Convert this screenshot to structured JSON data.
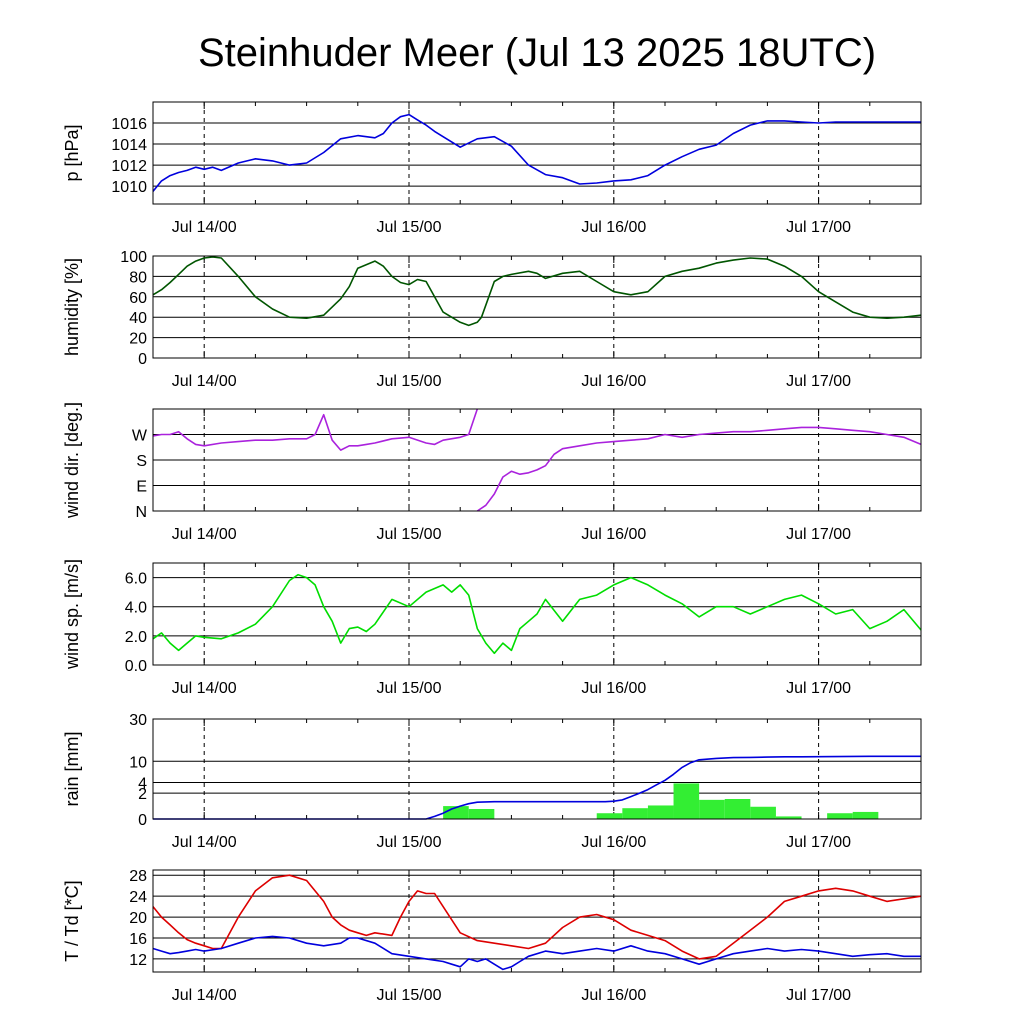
{
  "title": "Steinhuder Meer (Jul 13 2025 18UTC)",
  "x_tick_labels": [
    "Jul 14/00",
    "Jul 15/00",
    "Jul 16/00",
    "Jul 17/00"
  ],
  "chart_data": [
    {
      "type": "line",
      "ylabel": "p [hPa]",
      "ylim": [
        1008.3,
        1018.0
      ],
      "ticks": [
        1010,
        1012,
        1014,
        1016
      ],
      "tick_labels": [
        "1010",
        "1012",
        "1014",
        "1016"
      ],
      "xlim_hours": [
        0,
        90
      ],
      "series": [
        {
          "color": "#0000dd",
          "x": [
            0,
            1,
            2,
            3,
            4,
            5,
            6,
            7,
            8,
            10,
            12,
            14,
            16,
            18,
            20,
            22,
            24,
            26,
            27,
            28,
            29,
            30,
            31,
            32,
            33,
            34,
            36,
            38,
            40,
            42,
            44,
            46,
            48,
            50,
            52,
            54,
            56,
            58,
            60,
            62,
            64,
            66,
            68,
            70,
            72,
            74,
            76,
            78,
            80,
            82,
            84,
            86,
            88,
            90
          ],
          "y": [
            1009.5,
            1010.5,
            1011.0,
            1011.3,
            1011.5,
            1011.8,
            1011.6,
            1011.8,
            1011.5,
            1012.2,
            1012.6,
            1012.4,
            1012.0,
            1012.2,
            1013.2,
            1014.5,
            1014.8,
            1014.6,
            1015.0,
            1016.0,
            1016.6,
            1016.8,
            1016.3,
            1015.8,
            1015.2,
            1014.7,
            1013.7,
            1014.5,
            1014.7,
            1013.8,
            1012.0,
            1011.1,
            1010.8,
            1010.2,
            1010.3,
            1010.5,
            1010.6,
            1011.0,
            1012.0,
            1012.8,
            1013.5,
            1013.9,
            1015.0,
            1015.8,
            1016.2,
            1016.2,
            1016.1,
            1016.0,
            1016.1,
            1016.1,
            1016.1,
            1016.1,
            1016.1,
            1016.1
          ]
        }
      ]
    },
    {
      "type": "line",
      "ylabel": "humidity [%]",
      "ylim": [
        0,
        100
      ],
      "ticks": [
        0,
        20,
        40,
        60,
        80,
        100
      ],
      "tick_labels": [
        "0",
        "20",
        "40",
        "60",
        "80",
        "100"
      ],
      "xlim_hours": [
        0,
        90
      ],
      "series": [
        {
          "color": "#005500",
          "x": [
            0,
            1,
            2,
            3,
            4,
            5,
            6,
            7,
            8,
            10,
            12,
            14,
            16,
            18,
            20,
            22,
            23,
            24,
            26,
            27,
            28,
            29,
            30,
            31,
            32,
            34,
            36,
            37,
            38,
            38.5,
            40,
            41,
            42,
            44,
            45,
            46,
            48,
            50,
            52,
            54,
            56,
            58,
            60,
            62,
            64,
            66,
            68,
            70,
            72,
            74,
            76,
            78,
            80,
            82,
            84,
            86,
            88,
            90
          ],
          "y": [
            62,
            67,
            74,
            82,
            90,
            95,
            98,
            99,
            98,
            80,
            60,
            48,
            40,
            39,
            42,
            58,
            70,
            88,
            95,
            90,
            80,
            74,
            72,
            77,
            75,
            45,
            35,
            32,
            35,
            40,
            75,
            80,
            82,
            85,
            83,
            78,
            83,
            85,
            75,
            65,
            62,
            65,
            80,
            85,
            88,
            93,
            96,
            98,
            97,
            90,
            80,
            65,
            55,
            45,
            40,
            39,
            40,
            42
          ]
        }
      ]
    },
    {
      "type": "line",
      "ylabel": "wind dir. [deg.]",
      "ylim": [
        0,
        360
      ],
      "ticks": [
        0,
        90,
        180,
        270
      ],
      "tick_labels": [
        "N",
        "E",
        "S",
        "W"
      ],
      "xlim_hours": [
        0,
        90
      ],
      "series": [
        {
          "color": "#aa22dd",
          "x": [
            0,
            1,
            2,
            3,
            4,
            5,
            6,
            8,
            10,
            12,
            14,
            16,
            18,
            19,
            20,
            21,
            22,
            23,
            24,
            25,
            26,
            28,
            30,
            32,
            33,
            34,
            36,
            37,
            38
          ],
          "y": [
            265,
            270,
            270,
            280,
            255,
            235,
            230,
            240,
            245,
            250,
            250,
            255,
            255,
            270,
            340,
            250,
            215,
            230,
            230,
            235,
            240,
            255,
            260,
            240,
            235,
            250,
            260,
            270,
            360
          ]
        },
        {
          "color": "#aa22dd",
          "x": [
            38,
            39,
            40,
            41,
            42,
            43,
            44,
            45,
            46,
            47,
            48,
            50,
            52,
            54,
            56,
            58,
            60,
            62,
            64,
            66,
            68,
            70,
            72,
            74,
            76,
            78,
            80,
            82,
            84,
            86,
            88,
            90
          ],
          "y": [
            0,
            20,
            60,
            120,
            140,
            130,
            135,
            145,
            160,
            200,
            220,
            230,
            240,
            245,
            250,
            255,
            270,
            260,
            270,
            275,
            280,
            280,
            285,
            290,
            295,
            295,
            290,
            285,
            280,
            270,
            260,
            235
          ]
        }
      ]
    },
    {
      "type": "line",
      "ylabel": "wind sp. [m/s]",
      "ylim": [
        0,
        7.0
      ],
      "ticks": [
        0.0,
        2.0,
        4.0,
        6.0
      ],
      "tick_labels": [
        "0.0",
        "2.0",
        "4.0",
        "6.0"
      ],
      "xlim_hours": [
        0,
        90
      ],
      "series": [
        {
          "color": "#00dd00",
          "x": [
            0,
            1,
            2,
            3,
            4,
            5,
            6,
            8,
            10,
            12,
            14,
            16,
            17,
            18,
            19,
            20,
            21,
            22,
            23,
            24,
            25,
            26,
            28,
            30,
            32,
            34,
            35,
            36,
            37,
            38,
            39,
            40,
            41,
            42,
            43,
            44,
            45,
            46,
            48,
            50,
            52,
            54,
            56,
            58,
            60,
            62,
            64,
            66,
            68,
            70,
            72,
            74,
            76,
            78,
            80,
            82,
            84,
            86,
            88,
            90
          ],
          "y": [
            1.8,
            2.2,
            1.5,
            1.0,
            1.5,
            2.0,
            1.9,
            1.8,
            2.2,
            2.8,
            4.0,
            5.8,
            6.2,
            6.0,
            5.5,
            4.0,
            3.0,
            1.5,
            2.5,
            2.6,
            2.3,
            2.8,
            4.5,
            4.0,
            5.0,
            5.5,
            5.0,
            5.5,
            4.8,
            2.5,
            1.5,
            0.8,
            1.5,
            1.0,
            2.5,
            3.0,
            3.5,
            4.5,
            3.0,
            4.5,
            4.8,
            5.5,
            6.0,
            5.5,
            4.8,
            4.2,
            3.3,
            4.0,
            4.0,
            3.5,
            4.0,
            4.5,
            4.8,
            4.2,
            3.5,
            3.8,
            2.5,
            3.0,
            3.8,
            2.4
          ]
        }
      ]
    },
    {
      "type": "bar",
      "ylabel": "rain [mm]",
      "scale": "sqrt",
      "ylim": [
        0,
        30
      ],
      "ticks": [
        0,
        2,
        4,
        10,
        30
      ],
      "tick_labels": [
        "0",
        "2",
        "4",
        "10",
        "30"
      ],
      "xlim_hours": [
        0,
        90
      ],
      "bar_color": "#33ee33",
      "bar_width_hours": 3,
      "bars": {
        "x": [
          35.5,
          38.5,
          53.5,
          56.5,
          59.5,
          62.5,
          65.5,
          68.5,
          71.5,
          74.5,
          80.5,
          83.5
        ],
        "values": [
          0.5,
          0.3,
          0.1,
          0.35,
          0.55,
          3.8,
          1.1,
          1.2,
          0.45,
          0.02,
          0.1,
          0.15
        ]
      },
      "series": [
        {
          "color": "#0000dd",
          "name": "",
          "x": [
            0,
            30,
            32,
            33,
            34,
            35,
            36,
            37,
            38,
            40,
            42,
            44,
            46,
            48,
            50,
            52,
            53,
            54,
            55,
            56,
            57,
            58,
            59,
            60,
            61,
            62,
            63,
            64,
            66,
            68,
            70,
            72,
            74,
            76,
            80,
            84,
            88,
            90
          ],
          "y": [
            0,
            0,
            0,
            0.02,
            0.1,
            0.3,
            0.5,
            0.7,
            0.85,
            0.9,
            0.9,
            0.9,
            0.9,
            0.9,
            0.9,
            0.9,
            0.9,
            0.95,
            1.1,
            1.5,
            2.0,
            2.6,
            3.5,
            4.5,
            6.0,
            8.0,
            9.5,
            10.5,
            11.0,
            11.3,
            11.4,
            11.5,
            11.6,
            11.6,
            11.7,
            11.8,
            11.8,
            11.8
          ]
        }
      ]
    },
    {
      "type": "line",
      "ylabel": "T / Td [*C]",
      "ylim": [
        9.5,
        29
      ],
      "ticks": [
        12,
        16,
        20,
        24,
        28
      ],
      "tick_labels": [
        "12",
        "16",
        "20",
        "24",
        "28"
      ],
      "xlim_hours": [
        0,
        90
      ],
      "series": [
        {
          "color": "#dd0000",
          "x": [
            0,
            1,
            2,
            3,
            4,
            5,
            6,
            7,
            8,
            10,
            12,
            14,
            16,
            18,
            20,
            21,
            22,
            23,
            24,
            25,
            26,
            28,
            29,
            30,
            31,
            32,
            33,
            34,
            36,
            38,
            40,
            42,
            44,
            46,
            48,
            50,
            52,
            54,
            56,
            58,
            60,
            62,
            64,
            66,
            68,
            70,
            72,
            74,
            76,
            78,
            80,
            82,
            84,
            86,
            88,
            90
          ],
          "y": [
            22,
            20,
            18.5,
            17,
            15.7,
            15,
            14.5,
            14,
            14,
            20,
            25,
            27.5,
            28,
            27,
            23,
            20,
            18.5,
            17.5,
            17,
            16.5,
            17,
            16.5,
            20,
            23,
            25,
            24.5,
            24.5,
            22,
            17,
            15.5,
            15,
            14.5,
            14,
            15,
            18,
            20,
            20.5,
            19.5,
            17.5,
            16.5,
            15.5,
            13.5,
            12,
            12.5,
            15,
            17.5,
            20,
            23,
            24,
            25,
            25.5,
            25,
            24,
            23,
            23.5,
            24
          ]
        },
        {
          "color": "#0000dd",
          "x": [
            0,
            1,
            2,
            3,
            4,
            5,
            6,
            8,
            10,
            12,
            14,
            16,
            18,
            20,
            22,
            23,
            24,
            26,
            28,
            30,
            32,
            34,
            35,
            36,
            37,
            38,
            39,
            40,
            41,
            42,
            43,
            44,
            46,
            48,
            50,
            52,
            54,
            56,
            58,
            60,
            62,
            64,
            66,
            68,
            70,
            72,
            74,
            76,
            78,
            80,
            82,
            84,
            86,
            88,
            90
          ],
          "y": [
            14,
            13.5,
            13,
            13.2,
            13.5,
            13.8,
            13.5,
            14.0,
            15.0,
            16.0,
            16.3,
            16.0,
            15.0,
            14.5,
            15.0,
            16.0,
            16.0,
            15.0,
            13.0,
            12.5,
            12.0,
            11.5,
            11.0,
            10.5,
            12.0,
            11.5,
            12.0,
            11.0,
            10.0,
            10.5,
            11.5,
            12.5,
            13.5,
            13.0,
            13.5,
            14.0,
            13.5,
            14.5,
            13.5,
            13.0,
            12.0,
            11.0,
            12.0,
            13.0,
            13.5,
            14.0,
            13.5,
            13.8,
            13.5,
            13.0,
            12.5,
            12.8,
            13.0,
            12.5,
            12.5
          ]
        }
      ]
    }
  ]
}
